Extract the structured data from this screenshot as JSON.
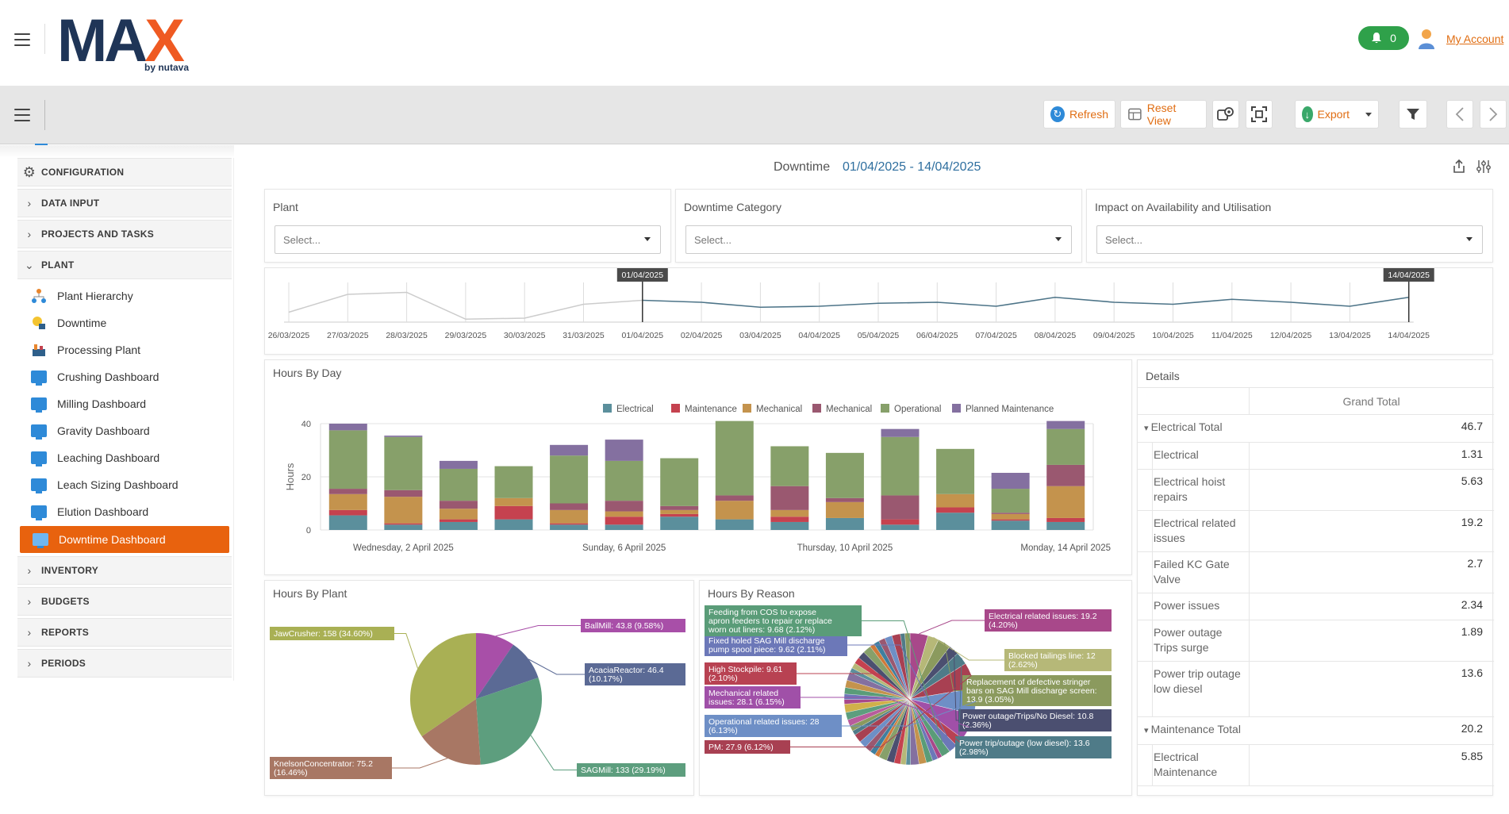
{
  "header": {
    "logo_main": "MAX",
    "logo_sub": "by nutava",
    "notification_count": "0",
    "account_label": "My Account"
  },
  "toolbar": {
    "refresh_label": "Refresh",
    "reset_view_label": "Reset View",
    "export_label": "Export"
  },
  "sidebar": {
    "sections": [
      {
        "label": "CONFIGURATION",
        "icon": "gear-icon"
      },
      {
        "label": "DATA INPUT",
        "icon": "chevron-right-icon"
      },
      {
        "label": "PROJECTS AND TASKS",
        "icon": "chevron-right-icon"
      },
      {
        "label": "PLANT",
        "icon": "chevron-down-icon"
      },
      {
        "label": "INVENTORY",
        "icon": "chevron-right-icon"
      },
      {
        "label": "BUDGETS",
        "icon": "chevron-right-icon"
      },
      {
        "label": "REPORTS",
        "icon": "chevron-right-icon"
      },
      {
        "label": "PERIODS",
        "icon": "chevron-right-icon"
      }
    ],
    "plant_items": [
      {
        "label": "Plant Hierarchy",
        "icon": "hierarchy-icon"
      },
      {
        "label": "Downtime",
        "icon": "downtime-icon"
      },
      {
        "label": "Processing Plant",
        "icon": "processing-plant-icon"
      },
      {
        "label": "Crushing Dashboard",
        "icon": "dashboard-icon"
      },
      {
        "label": "Milling Dashboard",
        "icon": "dashboard-icon"
      },
      {
        "label": "Gravity Dashboard",
        "icon": "dashboard-icon"
      },
      {
        "label": "Leaching Dashboard",
        "icon": "dashboard-icon"
      },
      {
        "label": "Leach Sizing Dashboard",
        "icon": "dashboard-icon"
      },
      {
        "label": "Elution Dashboard",
        "icon": "dashboard-icon"
      },
      {
        "label": "Downtime Dashboard",
        "icon": "dashboard-icon",
        "active": true
      }
    ]
  },
  "dashboard": {
    "title": "Downtime",
    "date_range": "01/04/2025 - 14/04/2025"
  },
  "filters": [
    {
      "label": "Plant",
      "placeholder": "Select..."
    },
    {
      "label": "Downtime Category",
      "placeholder": "Select..."
    },
    {
      "label": "Impact on Availability and Utilisation",
      "placeholder": "Select..."
    }
  ],
  "range_selector": {
    "start_label": "01/04/2025",
    "end_label": "14/04/2025",
    "dates": [
      "26/03/2025",
      "27/03/2025",
      "28/03/2025",
      "29/03/2025",
      "30/03/2025",
      "31/03/2025",
      "01/04/2025",
      "02/04/2025",
      "03/04/2025",
      "04/04/2025",
      "05/04/2025",
      "06/04/2025",
      "07/04/2025",
      "08/04/2025",
      "09/04/2025",
      "10/04/2025",
      "11/04/2025",
      "12/04/2025",
      "13/04/2025",
      "14/04/2025"
    ],
    "values": [
      10,
      28,
      30,
      3,
      4,
      18,
      22,
      20,
      15,
      16,
      19,
      20,
      16,
      25,
      20,
      18,
      23,
      20,
      16,
      25
    ]
  },
  "chart_data": [
    {
      "type": "bar",
      "title": "Hours By Day",
      "ylabel": "Hours",
      "ylim": [
        0,
        40
      ],
      "yticks": [
        0,
        20,
        40
      ],
      "x_tick_labels": [
        "Wednesday, 2 April 2025",
        "Sunday, 6 April 2025",
        "Thursday, 10 April 2025",
        "Monday, 14 April 2025"
      ],
      "legend_position": "top-right",
      "categories": [
        "01/04/2025",
        "02/04/2025",
        "03/04/2025",
        "04/04/2025",
        "05/04/2025",
        "06/04/2025",
        "07/04/2025",
        "08/04/2025",
        "09/04/2025",
        "10/04/2025",
        "11/04/2025",
        "12/04/2025",
        "13/04/2025",
        "14/04/2025"
      ],
      "series": [
        {
          "name": "Electrical",
          "color": "#5b8f9c",
          "values": [
            5.5,
            2,
            3,
            4,
            2,
            2,
            5,
            4,
            3,
            4.5,
            2,
            6.5,
            3.5,
            3
          ]
        },
        {
          "name": "Maintenance",
          "color": "#c5424f",
          "values": [
            2,
            0.5,
            1,
            5,
            0.5,
            3,
            1,
            0,
            2,
            0,
            2,
            2,
            0.5,
            1.5
          ]
        },
        {
          "name": "Mechanical",
          "color": "#c4934d",
          "values": [
            6,
            10,
            4,
            3,
            5,
            2,
            1.5,
            7,
            2.5,
            6,
            0,
            5,
            2,
            12
          ]
        },
        {
          "name": "Mechanical",
          "color": "#9a5870",
          "values": [
            2,
            2.5,
            3,
            0,
            2.5,
            4,
            1.5,
            2,
            9,
            1.5,
            9,
            0,
            0.5,
            8
          ]
        },
        {
          "name": "Operational",
          "color": "#87a06a",
          "values": [
            22,
            20,
            12,
            12,
            18,
            15,
            18,
            28,
            15,
            17,
            22,
            17,
            9,
            13.5
          ]
        },
        {
          "name": "Planned Maintenance",
          "color": "#8470a0",
          "values": [
            2.5,
            0.5,
            3,
            0,
            4,
            8,
            0,
            0,
            0,
            0,
            3,
            0,
            6,
            3
          ]
        }
      ]
    },
    {
      "type": "pie",
      "title": "Hours By Plant",
      "labels": [
        "BallMill: 43.8 (9.58%)",
        "AcaciaReactor: 46.4 (10.17%)",
        "SAGMill: 133 (29.19%)",
        "KnelsonConcentrator: 75.2 (16.46%)",
        "JawCrusher: 158 (34.60%)"
      ],
      "values": [
        43.8,
        46.4,
        133,
        75.2,
        158
      ],
      "colors": [
        "#a84fa8",
        "#5b6a95",
        "#5d9e7e",
        "#a87764",
        "#a9b054"
      ]
    },
    {
      "type": "pie",
      "title": "Hours By Reason",
      "labels": [
        "Electrical related issues: 19.2 (4.20%)",
        "Blocked tailings line: 12 (2.62%)",
        "Replacement of defective stringer bars on SAG Mill discharge screen: 13.9 (3.05%)",
        "Power outage/Trips/No Diesel: 10.8 (2.36%)",
        "Power trip/outage (low diesel): 13.6 (2.98%)",
        "PM: 27.9 (6.12%)",
        "Operational related issues: 28 (6.13%)",
        "Mechanical related issues: 28.1 (6.15%)",
        "High Stockpile: 9.61 (2.10%)",
        "Fixed holed SAG Mill discharge pump spool piece: 9.62 (2.11%)",
        "Feeding from COS to expose apron feeders to repair or replace worn out liners: 9.68 (2.12%)"
      ],
      "values": [
        19.2,
        12,
        13.9,
        10.8,
        13.6,
        27.9,
        28,
        28.1,
        9.61,
        9.62,
        9.68
      ],
      "colors": [
        "#a8488a",
        "#b6b878",
        "#8b9a5e",
        "#4b4f70",
        "#4f7b88",
        "#a84052",
        "#6e8fc6",
        "#a050a8",
        "#b84252",
        "#6c78b8",
        "#5a9c78"
      ]
    }
  ],
  "details": {
    "title": "Details",
    "column_header": "Grand Total",
    "rows": [
      {
        "label": "Electrical Total",
        "value": "46.7",
        "total": true
      },
      {
        "label": "Electrical",
        "value": "1.31"
      },
      {
        "label": "Electrical hoist repairs",
        "value": "5.63"
      },
      {
        "label": "Electrical related issues",
        "value": "19.2"
      },
      {
        "label": "Failed KC Gate Valve",
        "value": "2.7"
      },
      {
        "label": "Power issues",
        "value": "2.34"
      },
      {
        "label": "Power outage Trips surge",
        "value": "1.89"
      },
      {
        "label": "Power trip outage low diesel",
        "value": "13.6"
      },
      {
        "label": "Maintenance Total",
        "value": "20.2",
        "total": true
      },
      {
        "label": "Electrical Maintenance",
        "value": "5.85"
      }
    ]
  }
}
